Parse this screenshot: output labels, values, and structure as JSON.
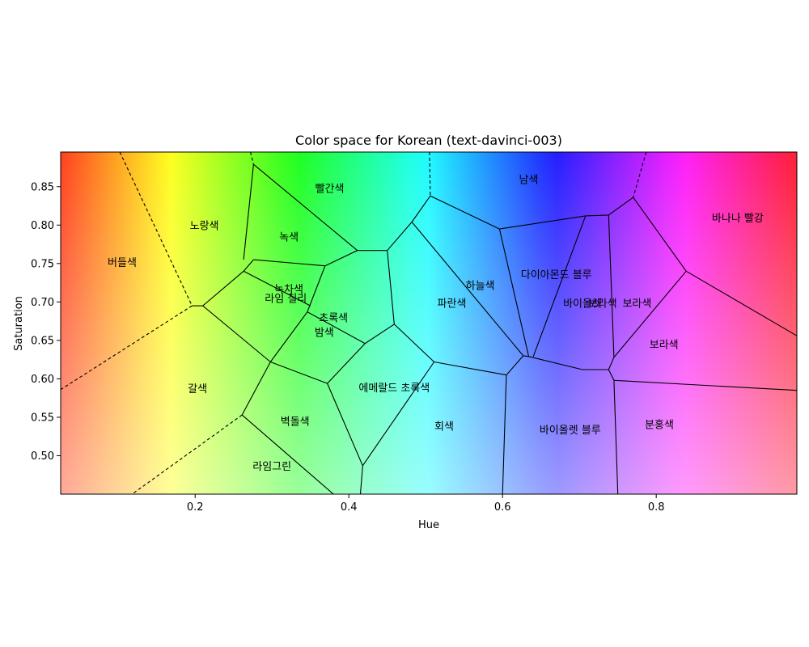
{
  "chart_data": {
    "type": "voronoi-colorspace",
    "title": "Color space for Korean (text-davinci-003)",
    "xlabel": "Hue",
    "ylabel": "Saturation",
    "xlim": [
      0.025,
      0.983
    ],
    "ylim": [
      0.45,
      0.895
    ],
    "xticks": [
      {
        "value": 0.2,
        "label": "0.2"
      },
      {
        "value": 0.4,
        "label": "0.4"
      },
      {
        "value": 0.6,
        "label": "0.6"
      },
      {
        "value": 0.8,
        "label": "0.8"
      }
    ],
    "yticks": [
      {
        "value": 0.5,
        "label": "0.50"
      },
      {
        "value": 0.55,
        "label": "0.55"
      },
      {
        "value": 0.6,
        "label": "0.60"
      },
      {
        "value": 0.65,
        "label": "0.65"
      },
      {
        "value": 0.7,
        "label": "0.70"
      },
      {
        "value": 0.75,
        "label": "0.75"
      },
      {
        "value": 0.8,
        "label": "0.80"
      },
      {
        "value": 0.85,
        "label": "0.85"
      }
    ],
    "regions": [
      {
        "label": "버들색",
        "hue": 0.105,
        "sat": 0.752
      },
      {
        "label": "노랑색",
        "hue": 0.212,
        "sat": 0.8
      },
      {
        "label": "빨간색",
        "hue": 0.375,
        "sat": 0.848
      },
      {
        "label": "녹색",
        "hue": 0.322,
        "sat": 0.785
      },
      {
        "label": "남색",
        "hue": 0.634,
        "sat": 0.86
      },
      {
        "label": "바나나 빨강",
        "hue": 0.906,
        "sat": 0.81
      },
      {
        "label": "녹차색",
        "hue": 0.322,
        "sat": 0.717
      },
      {
        "label": "라임 칠리",
        "hue": 0.318,
        "sat": 0.705
      },
      {
        "label": "하늘색",
        "hue": 0.571,
        "sat": 0.722
      },
      {
        "label": "다이아몬드 블루",
        "hue": 0.67,
        "sat": 0.736
      },
      {
        "label": "파란색",
        "hue": 0.534,
        "sat": 0.699
      },
      {
        "label": "바이올렛",
        "hue": 0.704,
        "sat": 0.699
      },
      {
        "label": "보라색",
        "hue": 0.73,
        "sat": 0.699
      },
      {
        "label": "보라색",
        "hue": 0.775,
        "sat": 0.699
      },
      {
        "label": "초록색",
        "hue": 0.38,
        "sat": 0.68
      },
      {
        "label": "밤색",
        "hue": 0.368,
        "sat": 0.661
      },
      {
        "label": "보라색",
        "hue": 0.81,
        "sat": 0.645
      },
      {
        "label": "에메랄드 초록색",
        "hue": 0.459,
        "sat": 0.589
      },
      {
        "label": "갈색",
        "hue": 0.203,
        "sat": 0.588
      },
      {
        "label": "벽돌색",
        "hue": 0.33,
        "sat": 0.545
      },
      {
        "label": "회색",
        "hue": 0.524,
        "sat": 0.539
      },
      {
        "label": "분홍색",
        "hue": 0.804,
        "sat": 0.541
      },
      {
        "label": "바이올렛 블루",
        "hue": 0.688,
        "sat": 0.534
      },
      {
        "label": "라임그린",
        "hue": 0.3,
        "sat": 0.487
      }
    ],
    "edges": [
      {
        "style": "dashed",
        "points": [
          [
            0.102,
            0.895
          ],
          [
            0.196,
            0.695
          ]
        ]
      },
      {
        "style": "dashed",
        "points": [
          [
            0.196,
            0.695
          ],
          [
            0.025,
            0.586
          ]
        ]
      },
      {
        "style": "dashed",
        "points": [
          [
            0.261,
            0.553
          ],
          [
            0.118,
            0.45
          ]
        ]
      },
      {
        "style": "dashed",
        "points": [
          [
            0.272,
            0.895
          ],
          [
            0.276,
            0.879
          ]
        ]
      },
      {
        "style": "dashed",
        "points": [
          [
            0.505,
            0.895
          ],
          [
            0.506,
            0.838
          ]
        ]
      },
      {
        "style": "dashed",
        "points": [
          [
            0.787,
            0.895
          ],
          [
            0.77,
            0.836
          ]
        ]
      },
      {
        "style": "solid",
        "points": [
          [
            0.196,
            0.695
          ],
          [
            0.21,
            0.695
          ]
        ]
      },
      {
        "style": "solid",
        "points": [
          [
            0.21,
            0.695
          ],
          [
            0.263,
            0.74
          ],
          [
            0.276,
            0.755
          ]
        ]
      },
      {
        "style": "solid",
        "points": [
          [
            0.276,
            0.879
          ],
          [
            0.263,
            0.755
          ]
        ]
      },
      {
        "style": "solid",
        "points": [
          [
            0.276,
            0.879
          ],
          [
            0.411,
            0.767
          ]
        ]
      },
      {
        "style": "solid",
        "points": [
          [
            0.276,
            0.755
          ],
          [
            0.369,
            0.747
          ]
        ]
      },
      {
        "style": "solid",
        "points": [
          [
            0.369,
            0.747
          ],
          [
            0.411,
            0.767
          ],
          [
            0.45,
            0.767
          ]
        ]
      },
      {
        "style": "solid",
        "points": [
          [
            0.369,
            0.747
          ],
          [
            0.346,
            0.687
          ]
        ]
      },
      {
        "style": "solid",
        "points": [
          [
            0.263,
            0.74
          ],
          [
            0.35,
            0.695
          ]
        ]
      },
      {
        "style": "solid",
        "points": [
          [
            0.346,
            0.687
          ],
          [
            0.298,
            0.622
          ]
        ]
      },
      {
        "style": "solid",
        "points": [
          [
            0.21,
            0.695
          ],
          [
            0.298,
            0.622
          ]
        ]
      },
      {
        "style": "solid",
        "points": [
          [
            0.298,
            0.622
          ],
          [
            0.261,
            0.553
          ]
        ]
      },
      {
        "style": "solid",
        "points": [
          [
            0.261,
            0.553
          ],
          [
            0.38,
            0.45
          ]
        ]
      },
      {
        "style": "solid",
        "points": [
          [
            0.298,
            0.622
          ],
          [
            0.372,
            0.594
          ]
        ]
      },
      {
        "style": "solid",
        "points": [
          [
            0.372,
            0.594
          ],
          [
            0.418,
            0.487
          ]
        ]
      },
      {
        "style": "solid",
        "points": [
          [
            0.418,
            0.487
          ],
          [
            0.415,
            0.45
          ]
        ]
      },
      {
        "style": "solid",
        "points": [
          [
            0.418,
            0.487
          ],
          [
            0.511,
            0.622
          ]
        ]
      },
      {
        "style": "solid",
        "points": [
          [
            0.372,
            0.594
          ],
          [
            0.421,
            0.646
          ]
        ]
      },
      {
        "style": "solid",
        "points": [
          [
            0.346,
            0.687
          ],
          [
            0.421,
            0.646
          ],
          [
            0.459,
            0.671
          ]
        ]
      },
      {
        "style": "solid",
        "points": [
          [
            0.45,
            0.767
          ],
          [
            0.459,
            0.671
          ]
        ]
      },
      {
        "style": "solid",
        "points": [
          [
            0.45,
            0.767
          ],
          [
            0.482,
            0.804
          ]
        ]
      },
      {
        "style": "solid",
        "points": [
          [
            0.459,
            0.671
          ],
          [
            0.511,
            0.622
          ]
        ]
      },
      {
        "style": "solid",
        "points": [
          [
            0.482,
            0.804
          ],
          [
            0.506,
            0.838
          ],
          [
            0.596,
            0.795
          ]
        ]
      },
      {
        "style": "solid",
        "points": [
          [
            0.482,
            0.804
          ],
          [
            0.627,
            0.63
          ]
        ]
      },
      {
        "style": "solid",
        "points": [
          [
            0.511,
            0.622
          ],
          [
            0.605,
            0.605
          ]
        ]
      },
      {
        "style": "solid",
        "points": [
          [
            0.605,
            0.605
          ],
          [
            0.627,
            0.63
          ]
        ]
      },
      {
        "style": "solid",
        "points": [
          [
            0.605,
            0.605
          ],
          [
            0.6,
            0.45
          ]
        ]
      },
      {
        "style": "solid",
        "points": [
          [
            0.596,
            0.795
          ],
          [
            0.634,
            0.629
          ]
        ]
      },
      {
        "style": "solid",
        "points": [
          [
            0.596,
            0.795
          ],
          [
            0.708,
            0.812
          ]
        ]
      },
      {
        "style": "solid",
        "points": [
          [
            0.627,
            0.63
          ],
          [
            0.634,
            0.629
          ],
          [
            0.704,
            0.612
          ]
        ]
      },
      {
        "style": "solid",
        "points": [
          [
            0.708,
            0.812
          ],
          [
            0.64,
            0.629
          ]
        ]
      },
      {
        "style": "solid",
        "points": [
          [
            0.708,
            0.812
          ],
          [
            0.738,
            0.813
          ],
          [
            0.77,
            0.836
          ]
        ]
      },
      {
        "style": "solid",
        "points": [
          [
            0.738,
            0.813
          ],
          [
            0.745,
            0.628
          ]
        ]
      },
      {
        "style": "solid",
        "points": [
          [
            0.745,
            0.628
          ],
          [
            0.738,
            0.612
          ]
        ]
      },
      {
        "style": "solid",
        "points": [
          [
            0.704,
            0.612
          ],
          [
            0.738,
            0.612
          ]
        ]
      },
      {
        "style": "solid",
        "points": [
          [
            0.738,
            0.612
          ],
          [
            0.745,
            0.598
          ]
        ]
      },
      {
        "style": "solid",
        "points": [
          [
            0.745,
            0.598
          ],
          [
            0.75,
            0.45
          ]
        ]
      },
      {
        "style": "solid",
        "points": [
          [
            0.745,
            0.598
          ],
          [
            0.983,
            0.585
          ]
        ]
      },
      {
        "style": "solid",
        "points": [
          [
            0.745,
            0.628
          ],
          [
            0.839,
            0.74
          ]
        ]
      },
      {
        "style": "solid",
        "points": [
          [
            0.77,
            0.836
          ],
          [
            0.839,
            0.74
          ]
        ]
      },
      {
        "style": "solid",
        "points": [
          [
            0.839,
            0.74
          ],
          [
            0.983,
            0.656
          ]
        ]
      }
    ]
  }
}
